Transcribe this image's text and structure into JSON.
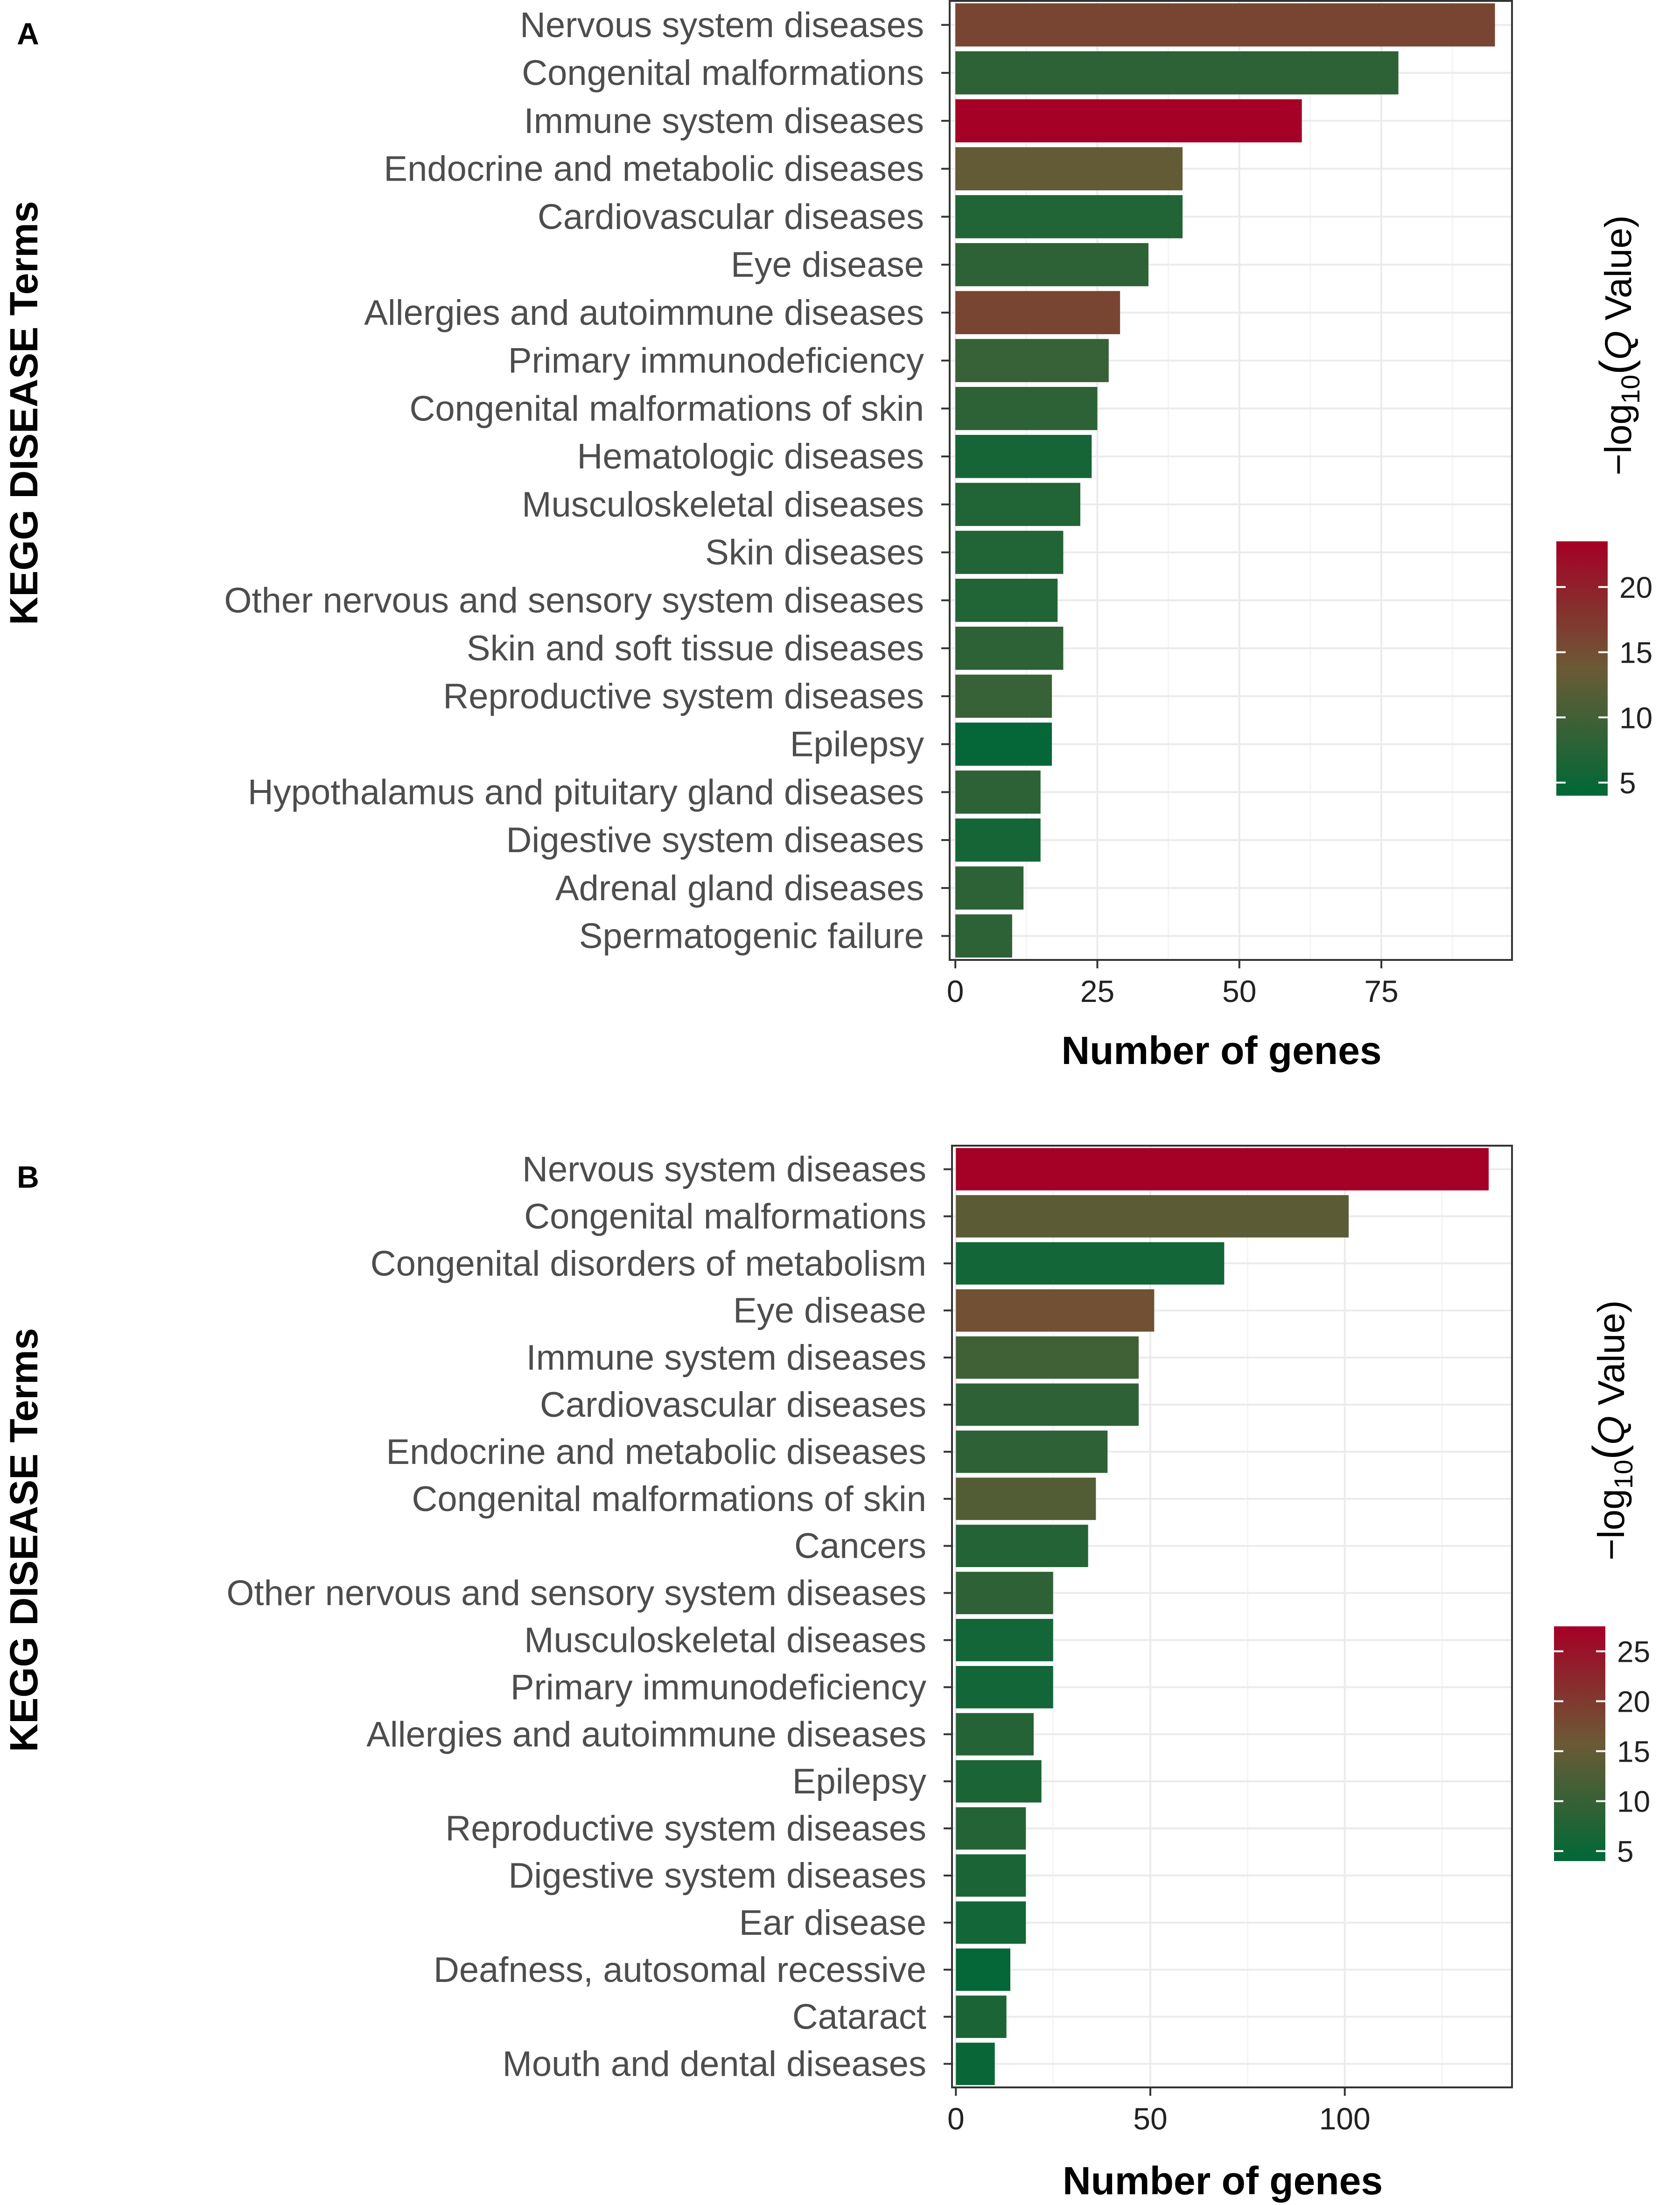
{
  "colors": {
    "low": "#006837",
    "high": "#a50026",
    "mid": "#6b5a35",
    "grid": "#ebebeb",
    "border": "#333333"
  },
  "chart_data": [
    {
      "type": "bar",
      "orientation": "horizontal",
      "panel_label": "A",
      "ylabel": "KEGG DISEASE Terms",
      "xlabel": "Number of genes",
      "xlim": [
        -1,
        98
      ],
      "xticks": [
        0,
        25,
        50,
        75
      ],
      "xtick_labels": [
        "0",
        "25",
        "50",
        "75"
      ],
      "color_variable": "−log10(Q Value)",
      "legend": {
        "title_prefix": "−log",
        "title_sub": "10",
        "title_open": "(",
        "title_q": "Q",
        "title_suffix": " Value)",
        "min": 4,
        "max": 23.5,
        "ticks": [
          5,
          10,
          15,
          20
        ],
        "tick_labels": [
          "5",
          "10",
          "15",
          "20"
        ]
      },
      "categories": [
        "Nervous system diseases",
        "Congenital malformations",
        "Immune system diseases",
        "Endocrine and metabolic diseases",
        "Cardiovascular diseases",
        "Eye disease",
        "Allergies and autoimmune diseases",
        "Primary immunodeficiency",
        "Congenital malformations of skin",
        "Hematologic diseases",
        "Musculoskeletal diseases",
        "Skin diseases",
        "Other nervous and sensory system diseases",
        "Skin and soft tissue diseases",
        "Reproductive system diseases",
        "Epilepsy",
        "Hypothalamus and pituitary gland diseases",
        "Digestive system diseases",
        "Adrenal gland diseases",
        "Spermatogenic failure"
      ],
      "values": [
        95,
        78,
        61,
        40,
        40,
        34,
        29,
        27,
        25,
        24,
        22,
        19,
        18,
        19,
        17,
        17,
        15,
        15,
        12,
        10
      ],
      "color_values": [
        16,
        8,
        23.5,
        13,
        7,
        8,
        16,
        9,
        8,
        6,
        7,
        7,
        7,
        8,
        9,
        4.5,
        8,
        6,
        8,
        8
      ]
    },
    {
      "type": "bar",
      "orientation": "horizontal",
      "panel_label": "B",
      "ylabel": "KEGG DISEASE Terms",
      "xlabel": "Number of genes",
      "xlim": [
        -1,
        143
      ],
      "xticks": [
        0,
        50,
        100
      ],
      "xtick_labels": [
        "0",
        "50",
        "100"
      ],
      "color_variable": "−log10(Q Value)",
      "legend": {
        "title_prefix": "−log",
        "title_sub": "10",
        "title_open": "(",
        "title_q": "Q",
        "title_suffix": " Value)",
        "min": 4,
        "max": 27.5,
        "ticks": [
          5,
          10,
          15,
          20,
          25
        ],
        "tick_labels": [
          "5",
          "10",
          "15",
          "20",
          "25"
        ]
      },
      "categories": [
        "Nervous system diseases",
        "Congenital malformations",
        "Congenital disorders of metabolism",
        "Eye disease",
        "Immune system diseases",
        "Cardiovascular diseases",
        "Endocrine and metabolic diseases",
        "Congenital malformations of skin",
        "Cancers",
        "Other nervous and sensory system diseases",
        "Musculoskeletal diseases",
        "Primary immunodeficiency",
        "Allergies and autoimmune diseases",
        "Epilepsy",
        "Reproductive system diseases",
        "Digestive system diseases",
        "Ear disease",
        "Deafness, autosomal recessive",
        "Cataract",
        "Mouth and dental diseases"
      ],
      "values": [
        137,
        101,
        69,
        51,
        47,
        47,
        39,
        36,
        34,
        25,
        25,
        25,
        20,
        22,
        18,
        18,
        18,
        14,
        13,
        10
      ],
      "color_values": [
        27.5,
        14,
        6,
        17,
        11,
        9,
        9,
        13,
        8,
        9,
        6,
        6,
        8,
        7,
        8,
        7,
        6,
        4.5,
        7,
        5
      ]
    }
  ]
}
